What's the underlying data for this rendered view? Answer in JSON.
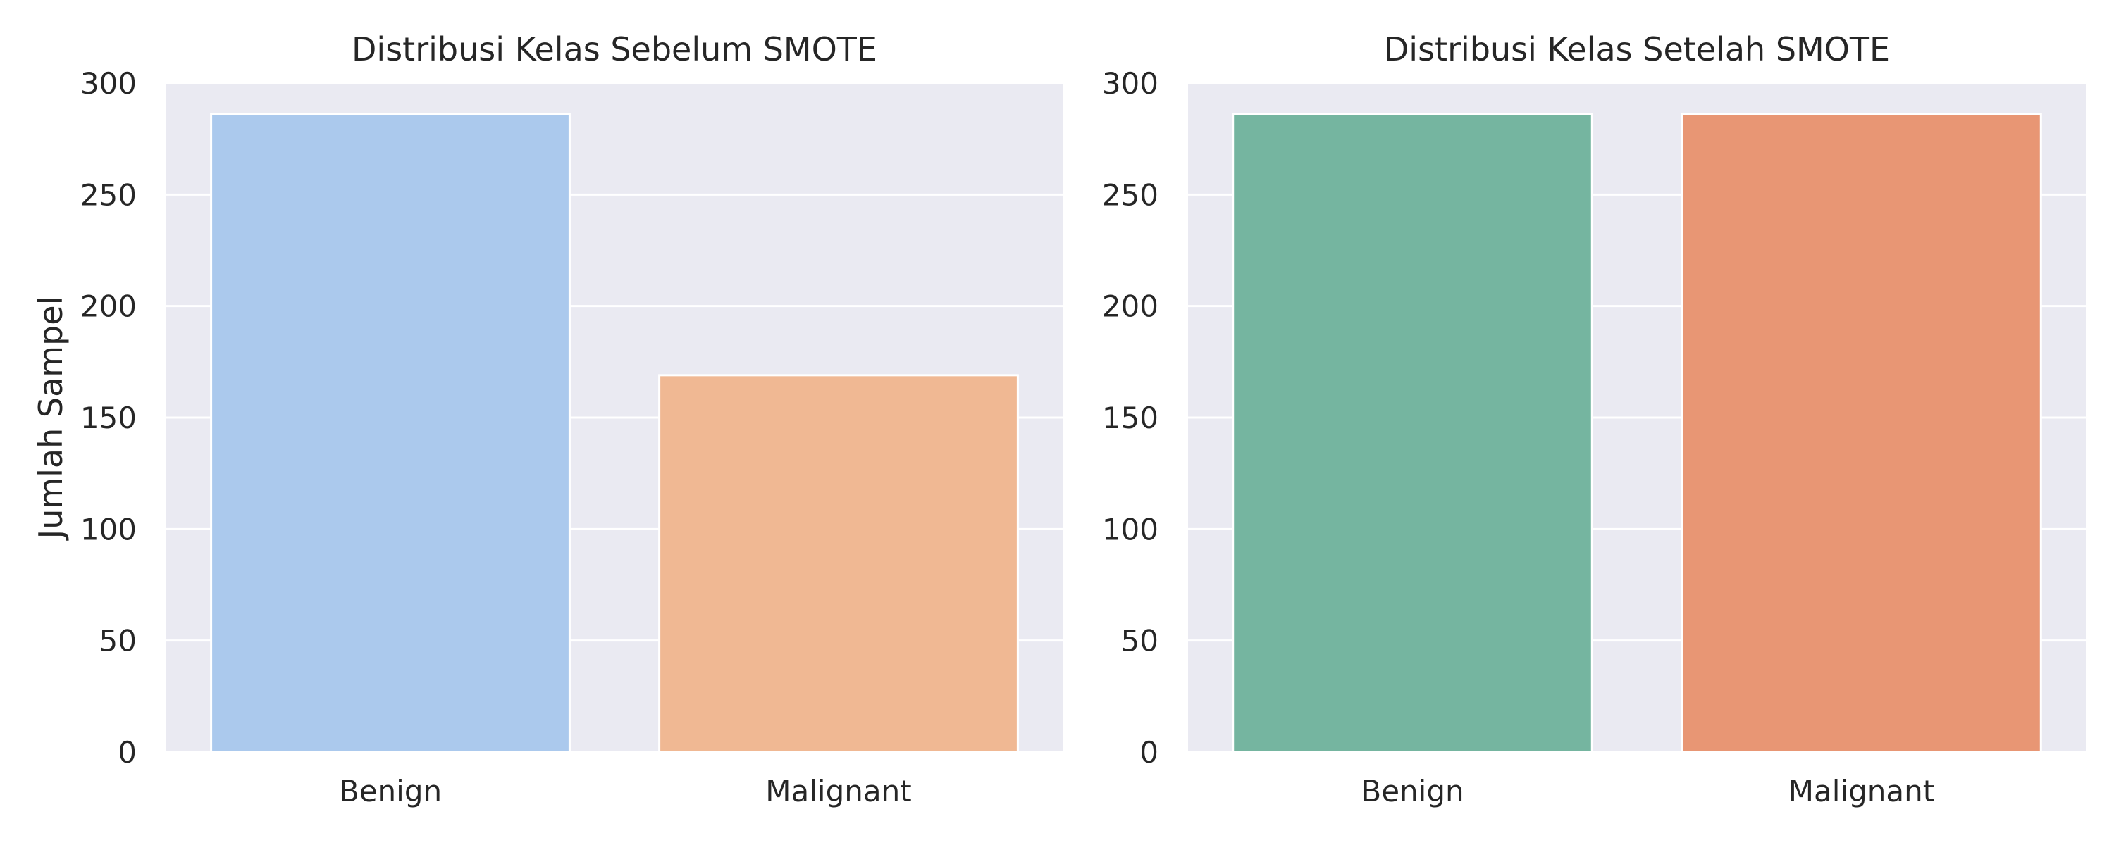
{
  "chart_data": [
    {
      "type": "bar",
      "title": "Distribusi Kelas Sebelum SMOTE",
      "xlabel": "",
      "ylabel": "Jumlah Sampel",
      "categories": [
        "Benign",
        "Malignant"
      ],
      "values": [
        286,
        169
      ],
      "colors": [
        "#abc9ed",
        "#f0b893"
      ],
      "ylim": [
        0,
        300
      ],
      "yticks": [
        0,
        50,
        100,
        150,
        200,
        250,
        300
      ],
      "grid": true,
      "background": "#eaeaf2"
    },
    {
      "type": "bar",
      "title": "Distribusi Kelas Setelah SMOTE",
      "xlabel": "",
      "ylabel": "",
      "categories": [
        "Benign",
        "Malignant"
      ],
      "values": [
        286,
        286
      ],
      "colors": [
        "#75b5a0",
        "#e89674"
      ],
      "ylim": [
        0,
        300
      ],
      "yticks": [
        0,
        50,
        100,
        150,
        200,
        250,
        300
      ],
      "grid": true,
      "background": "#eaeaf2"
    }
  ]
}
